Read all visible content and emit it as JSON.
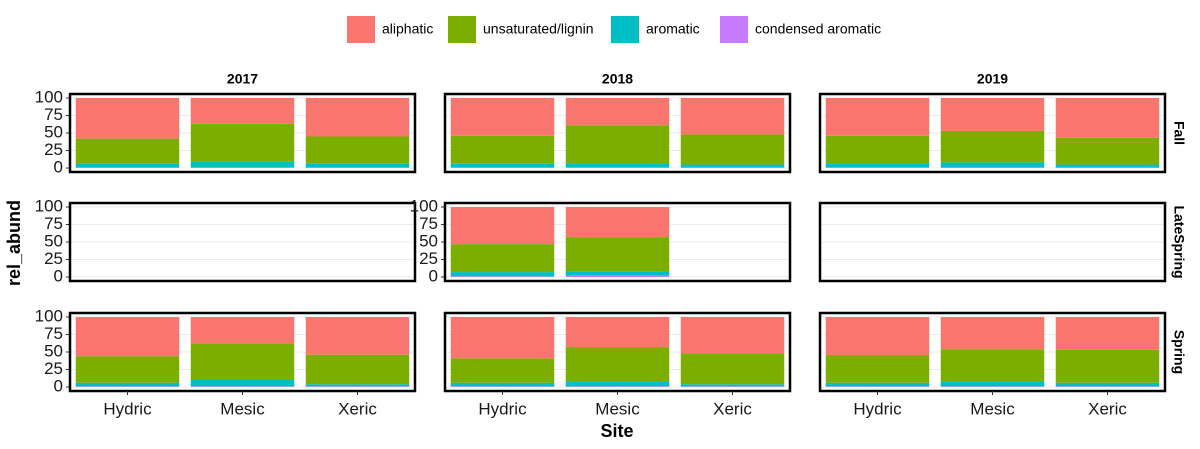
{
  "chart_data": {
    "type": "bar",
    "stacked": true,
    "grid": true,
    "legend": "top",
    "x_label": "Site",
    "y_label": "rel_abund",
    "categories": [
      "Hydric",
      "Mesic",
      "Xeric"
    ],
    "series": [
      {
        "name": "aliphatic",
        "color": "#f8766d"
      },
      {
        "name": "unsaturated/lignin",
        "color": "#7cae00"
      },
      {
        "name": "aromatic",
        "color": "#00bfc4"
      },
      {
        "name": "condensed aromatic",
        "color": "#c77cff"
      }
    ],
    "columns": [
      "2017",
      "2018",
      "2019"
    ],
    "rows": [
      "Fall",
      "LateSpring",
      "Spring"
    ],
    "ylim": [
      0,
      100
    ],
    "yticks": [
      0,
      25,
      50,
      75,
      100
    ],
    "panels": [
      {
        "show_yticks": true,
        "values": [
          [
            58,
            37,
            55
          ],
          [
            36,
            54,
            39
          ],
          [
            5,
            8,
            5
          ],
          [
            1,
            1,
            1
          ]
        ]
      },
      {
        "show_yticks": false,
        "values": [
          [
            54,
            39,
            52
          ],
          [
            40,
            54,
            43
          ],
          [
            5,
            6,
            4
          ],
          [
            1,
            1,
            1
          ]
        ]
      },
      {
        "show_yticks": false,
        "values": [
          [
            54,
            47,
            57
          ],
          [
            39,
            45,
            38
          ],
          [
            6,
            7,
            4
          ],
          [
            1,
            1,
            1
          ]
        ]
      },
      {
        "show_yticks": true,
        "values": [
          [
            null,
            null,
            null
          ],
          [
            null,
            null,
            null
          ],
          [
            null,
            null,
            null
          ],
          [
            null,
            null,
            null
          ]
        ]
      },
      {
        "show_yticks": true,
        "values": [
          [
            53,
            43,
            null
          ],
          [
            40,
            49,
            null
          ],
          [
            6,
            6,
            null
          ],
          [
            1,
            2,
            null
          ]
        ]
      },
      {
        "show_yticks": false,
        "values": [
          [
            null,
            null,
            null
          ],
          [
            null,
            null,
            null
          ],
          [
            null,
            null,
            null
          ],
          [
            null,
            null,
            null
          ]
        ]
      },
      {
        "show_yticks": true,
        "values": [
          [
            56,
            38,
            54
          ],
          [
            38,
            52,
            42
          ],
          [
            5,
            9,
            3
          ],
          [
            1,
            1,
            1
          ]
        ]
      },
      {
        "show_yticks": false,
        "values": [
          [
            59,
            43,
            52
          ],
          [
            35,
            49,
            44
          ],
          [
            5,
            7,
            3
          ],
          [
            1,
            1,
            1
          ]
        ]
      },
      {
        "show_yticks": false,
        "values": [
          [
            55,
            46,
            47
          ],
          [
            39,
            46,
            47
          ],
          [
            5,
            7,
            5
          ],
          [
            1,
            1,
            1
          ]
        ]
      }
    ]
  }
}
